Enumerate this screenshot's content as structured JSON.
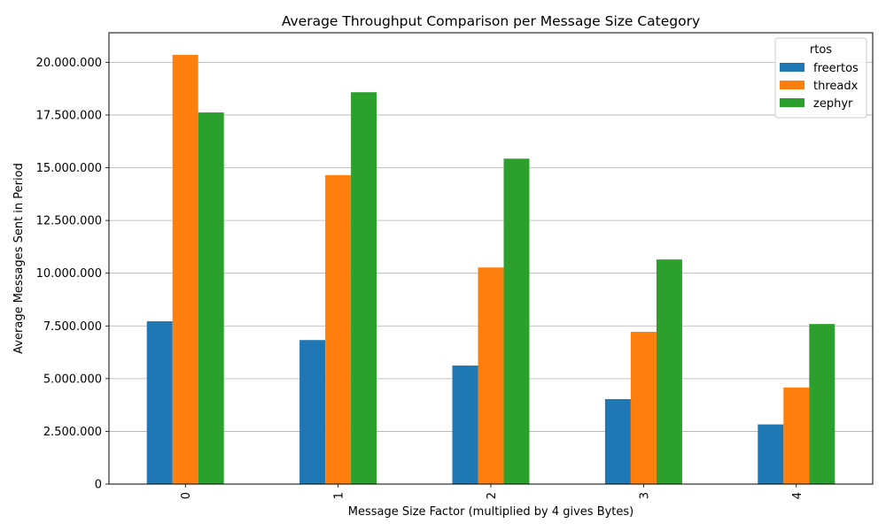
{
  "chart_data": {
    "type": "bar",
    "title": "Average Throughput Comparison per Message Size Category",
    "xlabel": "Message Size Factor (multiplied by 4 gives Bytes)",
    "ylabel": "Average Messages Sent in Period",
    "categories": [
      "0",
      "1",
      "2",
      "3",
      "4"
    ],
    "series": [
      {
        "name": "freertos",
        "color": "#1f77b4",
        "values": [
          7720000,
          6830000,
          5620000,
          4030000,
          2830000
        ]
      },
      {
        "name": "threadx",
        "color": "#ff7f0e",
        "values": [
          20350000,
          14650000,
          10270000,
          7220000,
          4580000
        ]
      },
      {
        "name": "zephyr",
        "color": "#2ca02c",
        "values": [
          17620000,
          18580000,
          15430000,
          10650000,
          7590000
        ]
      }
    ],
    "ylim": [
      0,
      21400000
    ],
    "yticks": [
      0,
      2500000,
      5000000,
      7500000,
      10000000,
      12500000,
      15000000,
      17500000,
      20000000
    ],
    "ytick_labels": [
      "0",
      "2.500.000",
      "5.000.000",
      "7.500.000",
      "10.000.000",
      "12.500.000",
      "15.000.000",
      "17.500.000",
      "20.000.000"
    ],
    "grid": "y",
    "legend": {
      "title": "rtos",
      "position": "top-right"
    }
  }
}
